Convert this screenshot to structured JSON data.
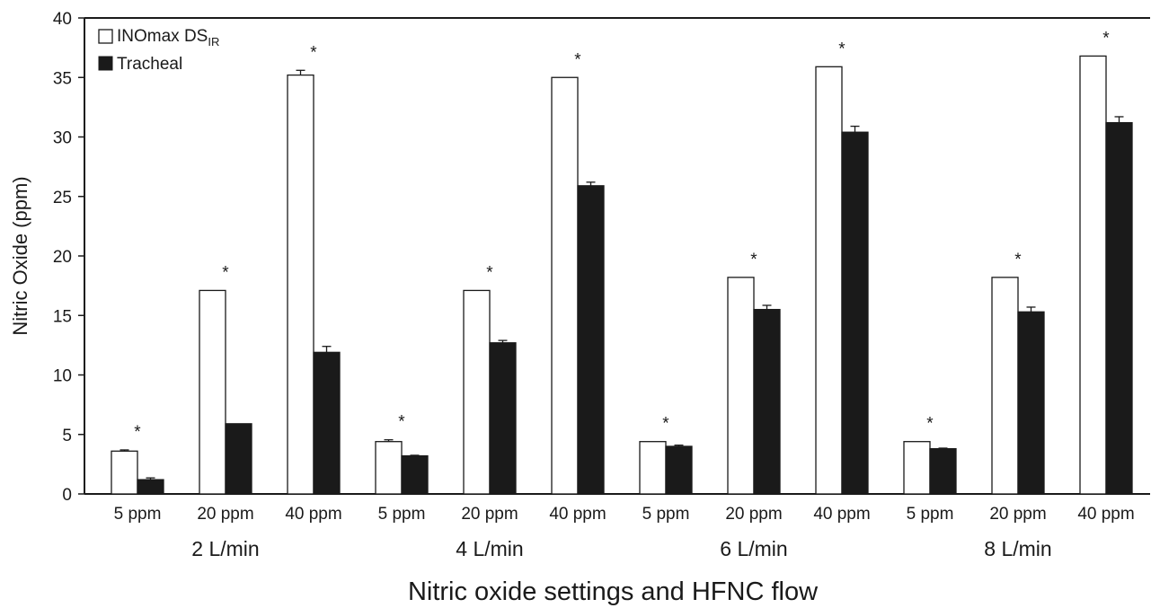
{
  "chart_data": {
    "type": "bar",
    "xlabel": "Nitric oxide settings and HFNC flow",
    "ylabel": "Nitric Oxide (ppm)",
    "ylim": [
      0,
      40
    ],
    "yticks": [
      0,
      5,
      10,
      15,
      20,
      25,
      30,
      35,
      40
    ],
    "grid": false,
    "legend_position": "top-left",
    "groups": [
      "2 L/min",
      "4 L/min",
      "6 L/min",
      "8 L/min"
    ],
    "settings": [
      "5 ppm",
      "20 ppm",
      "40 ppm"
    ],
    "categories": [
      "5 ppm",
      "20 ppm",
      "40 ppm",
      "5 ppm",
      "20 ppm",
      "40 ppm",
      "5 ppm",
      "20 ppm",
      "40 ppm",
      "5 ppm",
      "20 ppm",
      "40 ppm"
    ],
    "series": [
      {
        "name": "INOmax DS",
        "name_subscript": "IR",
        "fill": "#ffffff",
        "values": [
          3.6,
          17.1,
          35.2,
          4.4,
          17.1,
          35.0,
          4.4,
          18.2,
          35.9,
          4.4,
          18.2,
          36.8
        ],
        "errors": [
          0.1,
          0,
          0.4,
          0.15,
          0,
          0,
          0,
          0,
          0,
          0,
          0,
          0
        ]
      },
      {
        "name": "Tracheal",
        "fill": "#1a1a1a",
        "values": [
          1.2,
          5.9,
          11.9,
          3.2,
          12.7,
          25.9,
          4.0,
          15.5,
          30.4,
          3.8,
          15.3,
          31.2
        ],
        "errors": [
          0.15,
          0,
          0.5,
          0.05,
          0.2,
          0.3,
          0.1,
          0.35,
          0.5,
          0.05,
          0.4,
          0.5
        ]
      }
    ],
    "significance_marker": "*"
  }
}
